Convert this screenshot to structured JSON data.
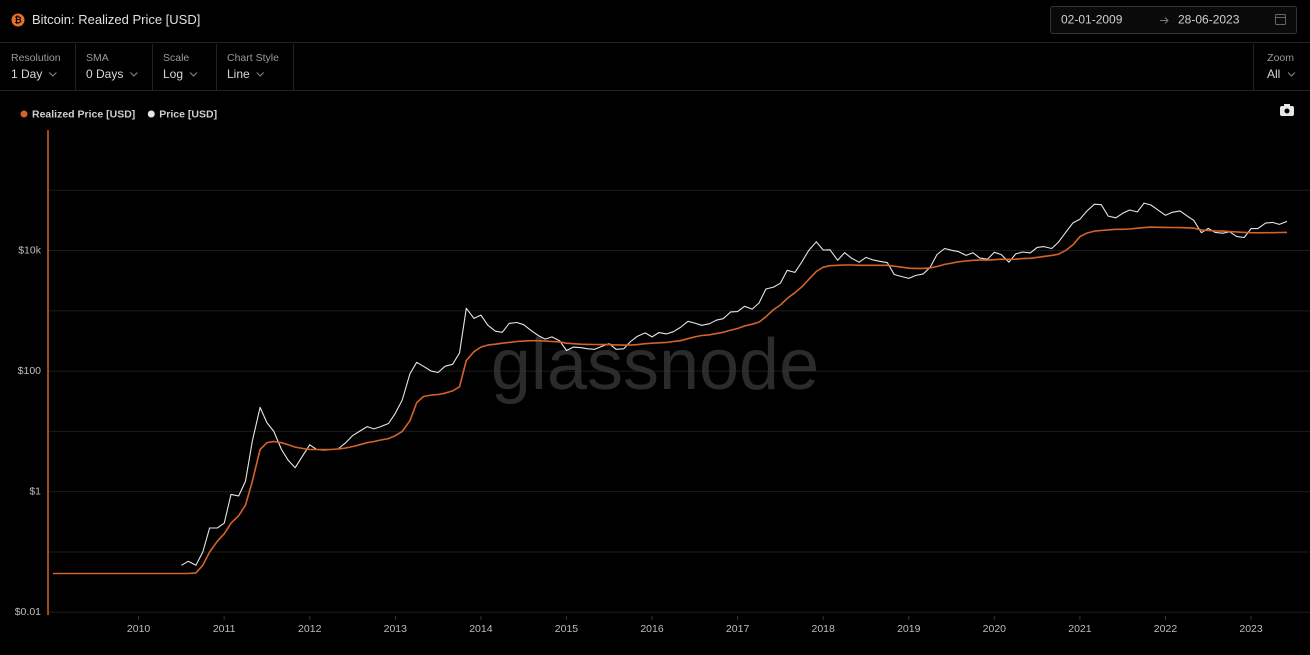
{
  "header": {
    "title": "Bitcoin: Realized Price [USD]",
    "date_from": "02-01-2009",
    "date_to": "28-06-2023"
  },
  "controls": [
    {
      "label": "Resolution",
      "value": "1 Day"
    },
    {
      "label": "SMA",
      "value": "0 Days"
    },
    {
      "label": "Scale",
      "value": "Log"
    },
    {
      "label": "Chart Style",
      "value": "Line"
    }
  ],
  "zoom": {
    "label": "Zoom",
    "value": "All"
  },
  "chart_data": {
    "type": "line",
    "watermark": "glassnode",
    "log_scale": true,
    "grid": true,
    "axis_color": "#d4622a",
    "xlim": [
      2009.0,
      2023.49
    ],
    "xticks": [
      2010,
      2011,
      2012,
      2013,
      2014,
      2015,
      2016,
      2017,
      2018,
      2019,
      2020,
      2021,
      2022,
      2023
    ],
    "ylim": [
      0.009,
      1000000
    ],
    "yticks": [
      {
        "value": 0.01,
        "label": "$0.01"
      },
      {
        "value": 1,
        "label": "$1"
      },
      {
        "value": 100,
        "label": "$100"
      },
      {
        "value": 10000,
        "label": "$10k"
      }
    ],
    "minor_gridlines": [
      0.1,
      10,
      1000,
      100000
    ],
    "x": [
      2009.0,
      2010.5,
      2010.58,
      2010.67,
      2010.75,
      2010.83,
      2010.92,
      2011.0,
      2011.08,
      2011.17,
      2011.25,
      2011.33,
      2011.42,
      2011.5,
      2011.58,
      2011.67,
      2011.75,
      2011.83,
      2011.92,
      2012.0,
      2012.08,
      2012.17,
      2012.25,
      2012.33,
      2012.42,
      2012.5,
      2012.58,
      2012.67,
      2012.75,
      2012.83,
      2012.92,
      2013.0,
      2013.08,
      2013.17,
      2013.25,
      2013.33,
      2013.42,
      2013.5,
      2013.58,
      2013.67,
      2013.75,
      2013.83,
      2013.92,
      2014.0,
      2014.08,
      2014.17,
      2014.25,
      2014.33,
      2014.42,
      2014.5,
      2014.58,
      2014.67,
      2014.75,
      2014.83,
      2014.92,
      2015.0,
      2015.08,
      2015.17,
      2015.25,
      2015.33,
      2015.42,
      2015.5,
      2015.58,
      2015.67,
      2015.75,
      2015.83,
      2015.92,
      2016.0,
      2016.08,
      2016.17,
      2016.25,
      2016.33,
      2016.42,
      2016.5,
      2016.58,
      2016.67,
      2016.75,
      2016.83,
      2016.92,
      2017.0,
      2017.08,
      2017.17,
      2017.25,
      2017.33,
      2017.42,
      2017.5,
      2017.58,
      2017.67,
      2017.75,
      2017.83,
      2017.92,
      2018.0,
      2018.08,
      2018.17,
      2018.25,
      2018.33,
      2018.42,
      2018.5,
      2018.58,
      2018.67,
      2018.75,
      2018.83,
      2018.92,
      2019.0,
      2019.08,
      2019.17,
      2019.25,
      2019.33,
      2019.42,
      2019.5,
      2019.58,
      2019.67,
      2019.75,
      2019.83,
      2019.92,
      2020.0,
      2020.08,
      2020.17,
      2020.25,
      2020.33,
      2020.42,
      2020.5,
      2020.58,
      2020.67,
      2020.75,
      2020.83,
      2020.92,
      2021.0,
      2021.08,
      2021.17,
      2021.25,
      2021.33,
      2021.42,
      2021.5,
      2021.58,
      2021.67,
      2021.75,
      2021.83,
      2021.92,
      2022.0,
      2022.08,
      2022.17,
      2022.25,
      2022.33,
      2022.42,
      2022.5,
      2022.58,
      2022.67,
      2022.75,
      2022.83,
      2022.92,
      2023.0,
      2023.08,
      2023.17,
      2023.25,
      2023.33,
      2023.42
    ],
    "series": [
      {
        "name": "Realized Price [USD]",
        "color": "#d4622a",
        "values": [
          0.044,
          0.044,
          0.044,
          0.045,
          0.06,
          0.1,
          0.15,
          0.2,
          0.3,
          0.4,
          0.6,
          1.5,
          5,
          6.5,
          6.8,
          6.5,
          6,
          5.5,
          5.2,
          5.0,
          5.0,
          5.0,
          5.0,
          5.1,
          5.3,
          5.6,
          6,
          6.5,
          6.8,
          7.2,
          7.6,
          8.5,
          10,
          15,
          30,
          38,
          40,
          41,
          43,
          47,
          55,
          150,
          210,
          250,
          270,
          280,
          290,
          300,
          310,
          315,
          320,
          320,
          315,
          310,
          305,
          290,
          285,
          280,
          278,
          276,
          275,
          275,
          272,
          270,
          270,
          275,
          285,
          290,
          295,
          300,
          310,
          320,
          345,
          370,
          390,
          400,
          420,
          440,
          480,
          510,
          560,
          600,
          650,
          800,
          1050,
          1250,
          1600,
          2000,
          2500,
          3300,
          4500,
          5300,
          5600,
          5700,
          5750,
          5750,
          5700,
          5700,
          5700,
          5700,
          5700,
          5500,
          5300,
          5100,
          5050,
          5050,
          5150,
          5450,
          5900,
          6200,
          6500,
          6700,
          6900,
          6950,
          6950,
          7050,
          7200,
          7150,
          7200,
          7350,
          7450,
          7700,
          8000,
          8300,
          8700,
          10000,
          12500,
          17000,
          19500,
          21000,
          21500,
          22000,
          22500,
          22500,
          22800,
          23500,
          24000,
          24500,
          24300,
          24200,
          24100,
          24000,
          23900,
          23500,
          22000,
          21500,
          21200,
          21000,
          20600,
          20400,
          20000,
          19800,
          19700,
          19800,
          19800,
          19900,
          20000
        ]
      },
      {
        "name": "Price [USD]",
        "color": "#e6e6e6",
        "values": [
          null,
          0.06,
          0.07,
          0.06,
          0.1,
          0.25,
          0.25,
          0.3,
          0.9,
          0.85,
          1.5,
          7,
          25,
          14,
          10,
          5,
          3.3,
          2.5,
          4,
          6,
          5,
          4.9,
          5,
          5.1,
          6.5,
          8.5,
          10,
          12,
          11,
          12,
          13.5,
          20,
          33,
          90,
          140,
          120,
          100,
          95,
          120,
          130,
          200,
          1100,
          750,
          850,
          580,
          460,
          440,
          620,
          640,
          590,
          480,
          390,
          340,
          370,
          320,
          220,
          250,
          245,
          235,
          230,
          260,
          285,
          230,
          235,
          310,
          380,
          430,
          370,
          435,
          415,
          450,
          530,
          670,
          625,
          575,
          610,
          700,
          740,
          960,
          970,
          1190,
          1070,
          1350,
          2300,
          2480,
          2870,
          4700,
          4340,
          6450,
          10000,
          14000,
          10200,
          10300,
          6900,
          9200,
          7500,
          6400,
          7700,
          7000,
          6600,
          6300,
          4000,
          3700,
          3450,
          3850,
          4100,
          5300,
          8600,
          10800,
          10100,
          9600,
          8300,
          9200,
          7500,
          7200,
          9350,
          8600,
          6400,
          8800,
          9450,
          9140,
          11300,
          11650,
          10800,
          13800,
          19700,
          29000,
          33100,
          45200,
          58800,
          57700,
          37300,
          35000,
          41500,
          47100,
          43800,
          61300,
          57000,
          46300,
          38500,
          43200,
          45500,
          37700,
          31800,
          19800,
          23300,
          20000,
          19400,
          20500,
          17200,
          16500,
          23100,
          23100,
          28500,
          29300,
          27200,
          30500
        ]
      }
    ]
  }
}
